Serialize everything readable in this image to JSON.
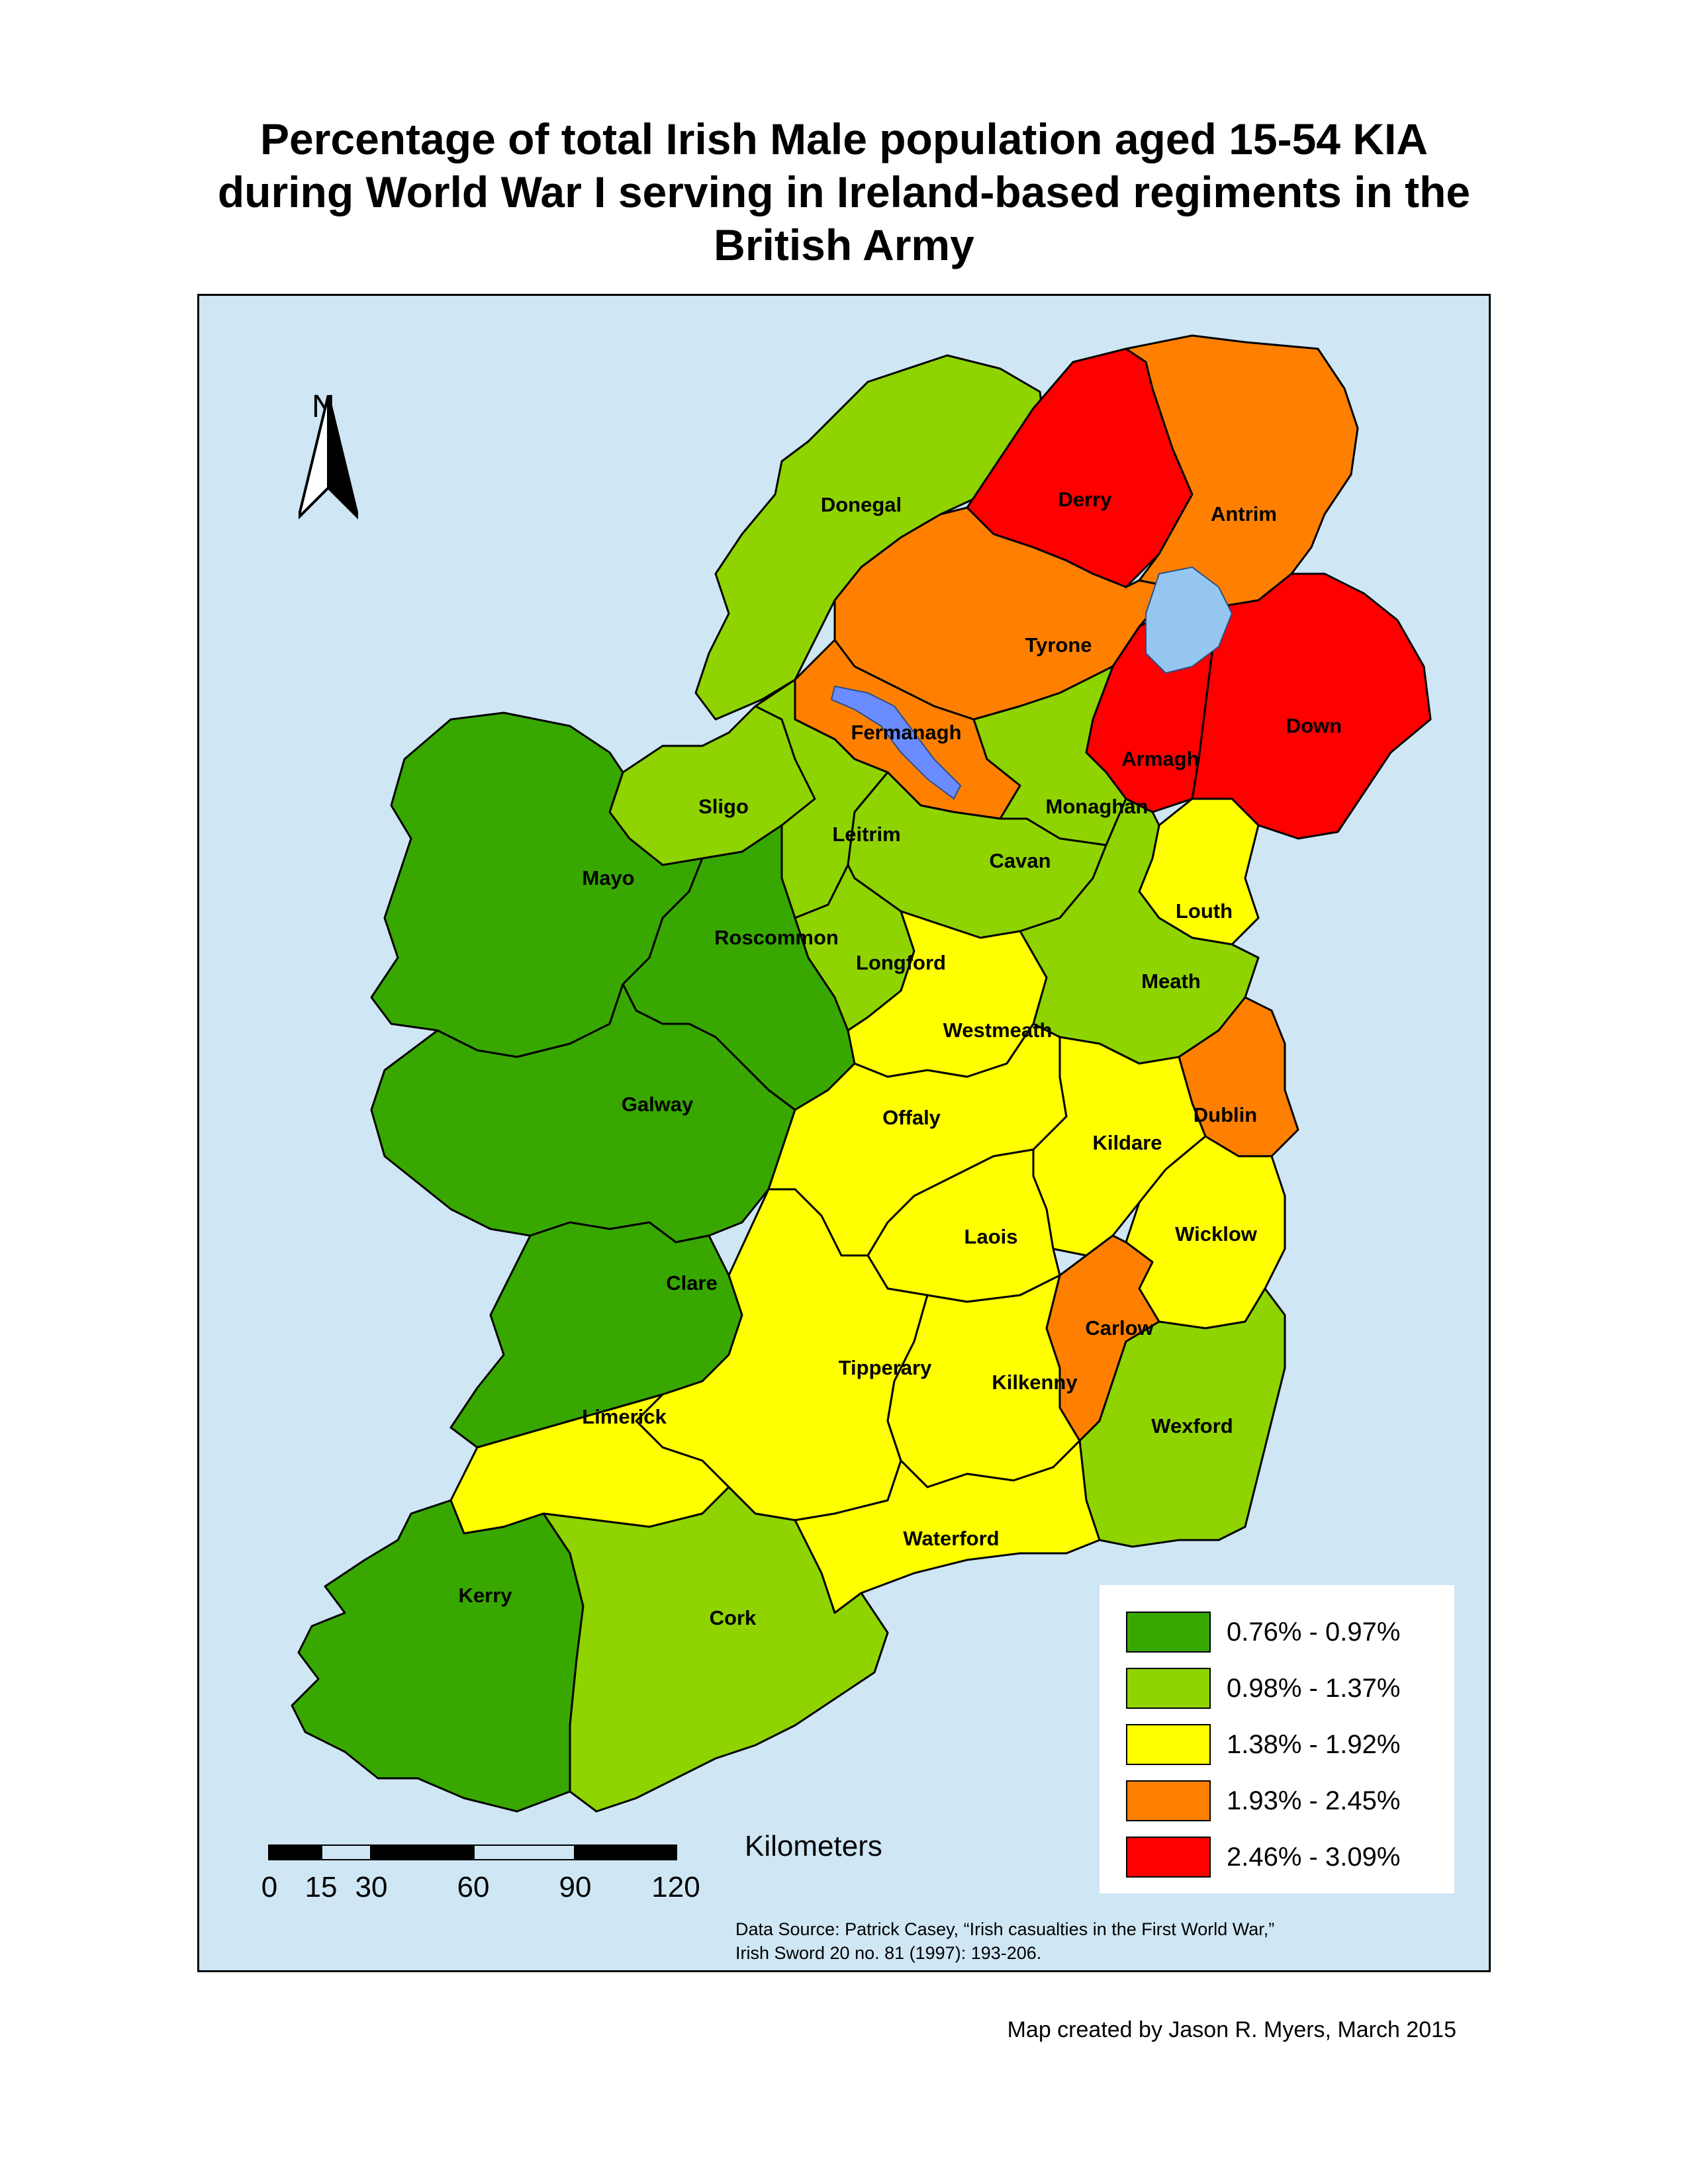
{
  "title": "Percentage of total Irish Male population aged 15-54 KIA during World War I serving in Ireland-based regiments in the British Army",
  "north_arrow": {
    "letter": "N",
    "icon": "north-arrow-icon"
  },
  "colors": {
    "sea": "#cfe6f4",
    "lake": "#94c6ef",
    "class1": "#38a800",
    "class2": "#8fd400",
    "class3": "#ffff00",
    "class4": "#ff8000",
    "class5": "#ff0000"
  },
  "legend": [
    {
      "label": "0.76% - 0.97%",
      "color": "#38a800"
    },
    {
      "label": "0.98% - 1.37%",
      "color": "#8fd400"
    },
    {
      "label": "1.38% - 1.92%",
      "color": "#ffff00"
    },
    {
      "label": "1.93% - 2.45%",
      "color": "#ff8000"
    },
    {
      "label": "2.46% - 3.09%",
      "color": "#ff0000"
    }
  ],
  "counties": [
    {
      "name": "Donegal",
      "class": 2
    },
    {
      "name": "Derry",
      "class": 5
    },
    {
      "name": "Antrim",
      "class": 4
    },
    {
      "name": "Tyrone",
      "class": 4
    },
    {
      "name": "Fermanagh",
      "class": 4
    },
    {
      "name": "Armagh",
      "class": 5
    },
    {
      "name": "Down",
      "class": 5
    },
    {
      "name": "Sligo",
      "class": 2
    },
    {
      "name": "Monaghan",
      "class": 2
    },
    {
      "name": "Leitrim",
      "class": 2
    },
    {
      "name": "Cavan",
      "class": 2
    },
    {
      "name": "Mayo",
      "class": 1
    },
    {
      "name": "Roscommon",
      "class": 1
    },
    {
      "name": "Louth",
      "class": 3
    },
    {
      "name": "Longford",
      "class": 2
    },
    {
      "name": "Meath",
      "class": 2
    },
    {
      "name": "Westmeath",
      "class": 3
    },
    {
      "name": "Galway",
      "class": 1
    },
    {
      "name": "Dublin",
      "class": 4
    },
    {
      "name": "Offaly",
      "class": 3
    },
    {
      "name": "Kildare",
      "class": 3
    },
    {
      "name": "Laois",
      "class": 3
    },
    {
      "name": "Wicklow",
      "class": 3
    },
    {
      "name": "Clare",
      "class": 1
    },
    {
      "name": "Carlow",
      "class": 4
    },
    {
      "name": "Tipperary",
      "class": 3
    },
    {
      "name": "Kilkenny",
      "class": 3
    },
    {
      "name": "Limerick",
      "class": 3
    },
    {
      "name": "Wexford",
      "class": 2
    },
    {
      "name": "Waterford",
      "class": 3
    },
    {
      "name": "Kerry",
      "class": 1
    },
    {
      "name": "Cork",
      "class": 2
    }
  ],
  "scale": {
    "unit": "Kilometers",
    "ticks": [
      "0",
      "15",
      "30",
      "60",
      "90",
      "120"
    ]
  },
  "source": {
    "line1": "Data Source: Patrick Casey, “Irish casualties in the First World War,”",
    "line2": "Irish Sword 20 no. 81 (1997): 193-206."
  },
  "credit": "Map created by Jason R. Myers, March 2015"
}
